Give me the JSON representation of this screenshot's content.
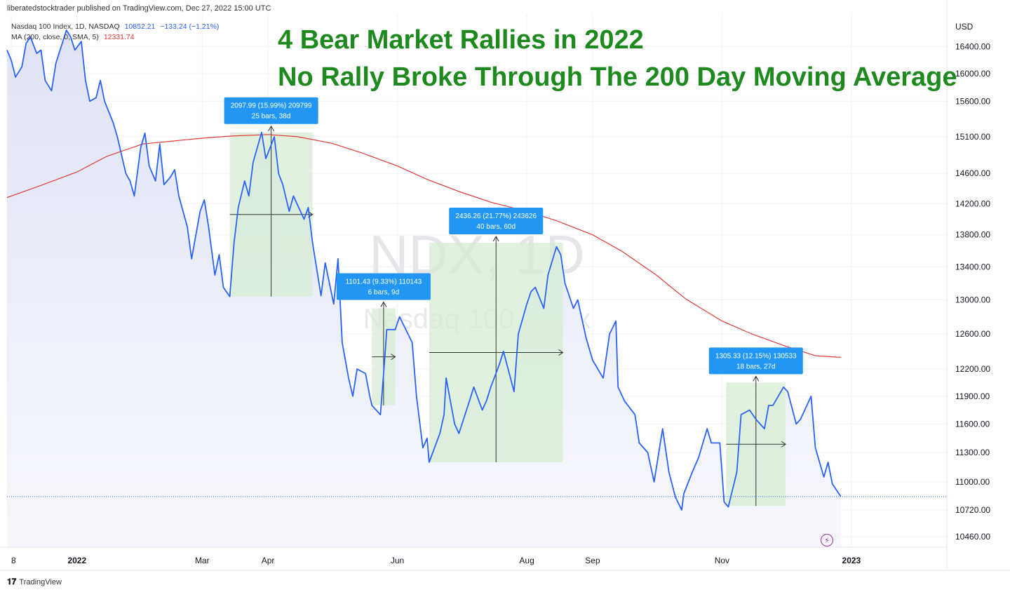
{
  "publisher_line": "liberatedstocktrader published on TradingView.com, Dec 27, 2022 15:00 UTC",
  "legend": {
    "symbol_line": "Nasdaq 100 Index, 1D, NASDAQ",
    "last": "10852.21",
    "change": "−133.24 (−1.21%)",
    "ma_line": "MA (200, close, 0, SMA, 5)",
    "ma_value": "12331.74"
  },
  "headline": {
    "line1": "4 Bear Market Rallies in 2022",
    "line2": "No Rally Broke Through The 200 Day Moving Average"
  },
  "watermark": {
    "ticker": "NDX, 1D",
    "name": "Nasdaq 100 Index"
  },
  "currency": "USD",
  "footer_brand": "TradingView",
  "colors": {
    "price": "#2962ff",
    "ma": "#e53935",
    "headline": "#1e8a1e",
    "measure_box": "#d6ecd2",
    "measure_label": "#2196f3"
  },
  "chart_data": {
    "type": "line",
    "title": "4 Bear Market Rallies in 2022 / No Rally Broke Through The 200 Day Moving Average",
    "xlabel": "",
    "ylabel": "",
    "y_scale": "log",
    "ylim": [
      10360,
      16900
    ],
    "y_ticks": [
      16400,
      16000,
      15600,
      15100,
      14600,
      14200,
      13800,
      13400,
      13000,
      12600,
      12200,
      11900,
      11600,
      11300,
      11000,
      10720,
      10460
    ],
    "y_tick_labels": [
      "16400.00",
      "16000.00",
      "15600.00",
      "15100.00",
      "14600.00",
      "14200.00",
      "13800.00",
      "13400.00",
      "13000.00",
      "12600.00",
      "12200.00",
      "11900.00",
      "11600.00",
      "11300.00",
      "11000.00",
      "10720.00",
      "10460.00"
    ],
    "x_range": [
      "2021-11-29",
      "2023-02-15"
    ],
    "x_ticks": [
      {
        "date": "2021-12-01",
        "label": "8"
      },
      {
        "date": "2022-01-01",
        "label": "2022"
      },
      {
        "date": "2022-03-01",
        "label": "Mar"
      },
      {
        "date": "2022-04-01",
        "label": "Apr"
      },
      {
        "date": "2022-06-01",
        "label": "Jun"
      },
      {
        "date": "2022-08-01",
        "label": "Aug"
      },
      {
        "date": "2022-09-01",
        "label": "Sep"
      },
      {
        "date": "2022-11-01",
        "label": "Nov"
      },
      {
        "date": "2023-01-01",
        "label": "2023"
      }
    ],
    "last_price": 10852.21,
    "series": [
      {
        "name": "Nasdaq 100 Index",
        "points": [
          [
            "2021-11-29",
            16350
          ],
          [
            "2021-12-01",
            16200
          ],
          [
            "2021-12-03",
            15950
          ],
          [
            "2021-12-06",
            16100
          ],
          [
            "2021-12-08",
            16450
          ],
          [
            "2021-12-10",
            16550
          ],
          [
            "2021-12-13",
            16300
          ],
          [
            "2021-12-15",
            16350
          ],
          [
            "2021-12-17",
            15900
          ],
          [
            "2021-12-20",
            15750
          ],
          [
            "2021-12-22",
            16150
          ],
          [
            "2021-12-24",
            16350
          ],
          [
            "2021-12-27",
            16650
          ],
          [
            "2021-12-29",
            16550
          ],
          [
            "2021-12-31",
            16350
          ],
          [
            "2022-01-03",
            16480
          ],
          [
            "2022-01-05",
            15900
          ],
          [
            "2022-01-07",
            15600
          ],
          [
            "2022-01-10",
            15650
          ],
          [
            "2022-01-12",
            15900
          ],
          [
            "2022-01-14",
            15600
          ],
          [
            "2022-01-18",
            15300
          ],
          [
            "2022-01-20",
            15100
          ],
          [
            "2022-01-24",
            14600
          ],
          [
            "2022-01-26",
            14500
          ],
          [
            "2022-01-28",
            14300
          ],
          [
            "2022-01-31",
            14950
          ],
          [
            "2022-02-02",
            15150
          ],
          [
            "2022-02-04",
            14700
          ],
          [
            "2022-02-07",
            14500
          ],
          [
            "2022-02-09",
            15000
          ],
          [
            "2022-02-11",
            14450
          ],
          [
            "2022-02-14",
            14550
          ],
          [
            "2022-02-16",
            14650
          ],
          [
            "2022-02-18",
            14300
          ],
          [
            "2022-02-22",
            13900
          ],
          [
            "2022-02-24",
            13500
          ],
          [
            "2022-02-28",
            14100
          ],
          [
            "2022-03-02",
            14250
          ],
          [
            "2022-03-04",
            13900
          ],
          [
            "2022-03-07",
            13300
          ],
          [
            "2022-03-09",
            13550
          ],
          [
            "2022-03-11",
            13150
          ],
          [
            "2022-03-14",
            13040
          ],
          [
            "2022-03-16",
            13700
          ],
          [
            "2022-03-18",
            14150
          ],
          [
            "2022-03-21",
            14500
          ],
          [
            "2022-03-23",
            14300
          ],
          [
            "2022-03-25",
            14750
          ],
          [
            "2022-03-29",
            15160
          ],
          [
            "2022-03-31",
            14800
          ],
          [
            "2022-04-04",
            15100
          ],
          [
            "2022-04-06",
            14600
          ],
          [
            "2022-04-08",
            14450
          ],
          [
            "2022-04-11",
            14100
          ],
          [
            "2022-04-13",
            14300
          ],
          [
            "2022-04-18",
            14000
          ],
          [
            "2022-04-20",
            14150
          ],
          [
            "2022-04-22",
            13700
          ],
          [
            "2022-04-26",
            13050
          ],
          [
            "2022-04-28",
            13450
          ],
          [
            "2022-05-02",
            12950
          ],
          [
            "2022-05-04",
            13500
          ],
          [
            "2022-05-06",
            12500
          ],
          [
            "2022-05-09",
            12100
          ],
          [
            "2022-05-11",
            11900
          ],
          [
            "2022-05-13",
            12200
          ],
          [
            "2022-05-17",
            12150
          ],
          [
            "2022-05-19",
            11900
          ],
          [
            "2022-05-20",
            11800
          ],
          [
            "2022-05-24",
            11700
          ],
          [
            "2022-05-26",
            12300
          ],
          [
            "2022-05-27",
            12650
          ],
          [
            "2022-05-31",
            12650
          ],
          [
            "2022-06-02",
            12800
          ],
          [
            "2022-06-06",
            12600
          ],
          [
            "2022-06-08",
            12500
          ],
          [
            "2022-06-10",
            11900
          ],
          [
            "2022-06-13",
            11350
          ],
          [
            "2022-06-15",
            11450
          ],
          [
            "2022-06-16",
            11200
          ],
          [
            "2022-06-21",
            11500
          ],
          [
            "2022-06-23",
            11700
          ],
          [
            "2022-06-24",
            12100
          ],
          [
            "2022-06-28",
            11600
          ],
          [
            "2022-06-30",
            11500
          ],
          [
            "2022-07-05",
            11850
          ],
          [
            "2022-07-07",
            12000
          ],
          [
            "2022-07-11",
            11750
          ],
          [
            "2022-07-13",
            11850
          ],
          [
            "2022-07-15",
            12000
          ],
          [
            "2022-07-19",
            12250
          ],
          [
            "2022-07-21",
            12400
          ],
          [
            "2022-07-26",
            11950
          ],
          [
            "2022-07-28",
            12600
          ],
          [
            "2022-08-01",
            12950
          ],
          [
            "2022-08-03",
            13100
          ],
          [
            "2022-08-05",
            13150
          ],
          [
            "2022-08-09",
            12900
          ],
          [
            "2022-08-11",
            13300
          ],
          [
            "2022-08-15",
            13650
          ],
          [
            "2022-08-17",
            13550
          ],
          [
            "2022-08-19",
            13200
          ],
          [
            "2022-08-23",
            12900
          ],
          [
            "2022-08-25",
            13000
          ],
          [
            "2022-08-29",
            12550
          ],
          [
            "2022-09-01",
            12300
          ],
          [
            "2022-09-06",
            12100
          ],
          [
            "2022-09-09",
            12600
          ],
          [
            "2022-09-12",
            12750
          ],
          [
            "2022-09-13",
            12000
          ],
          [
            "2022-09-16",
            11850
          ],
          [
            "2022-09-21",
            11700
          ],
          [
            "2022-09-23",
            11400
          ],
          [
            "2022-09-27",
            11300
          ],
          [
            "2022-09-30",
            11000
          ],
          [
            "2022-10-04",
            11550
          ],
          [
            "2022-10-07",
            11100
          ],
          [
            "2022-10-10",
            10850
          ],
          [
            "2022-10-13",
            10720
          ],
          [
            "2022-10-14",
            10880
          ],
          [
            "2022-10-18",
            11100
          ],
          [
            "2022-10-21",
            11250
          ],
          [
            "2022-10-25",
            11550
          ],
          [
            "2022-10-27",
            11400
          ],
          [
            "2022-10-31",
            11400
          ],
          [
            "2022-11-02",
            10800
          ],
          [
            "2022-11-04",
            10750
          ],
          [
            "2022-11-08",
            11100
          ],
          [
            "2022-11-10",
            11700
          ],
          [
            "2022-11-14",
            11750
          ],
          [
            "2022-11-17",
            11650
          ],
          [
            "2022-11-21",
            11550
          ],
          [
            "2022-11-23",
            11800
          ],
          [
            "2022-11-25",
            11800
          ],
          [
            "2022-11-30",
            12000
          ],
          [
            "2022-12-02",
            11950
          ],
          [
            "2022-12-06",
            11600
          ],
          [
            "2022-12-08",
            11650
          ],
          [
            "2022-12-13",
            11900
          ],
          [
            "2022-12-15",
            11350
          ],
          [
            "2022-12-19",
            11050
          ],
          [
            "2022-12-21",
            11200
          ],
          [
            "2022-12-23",
            10980
          ],
          [
            "2022-12-27",
            10852
          ]
        ]
      },
      {
        "name": "MA (200, close, 0, SMA, 5)",
        "points": [
          [
            "2021-11-29",
            14280
          ],
          [
            "2021-12-15",
            14440
          ],
          [
            "2022-01-01",
            14620
          ],
          [
            "2022-01-15",
            14830
          ],
          [
            "2022-02-01",
            15000
          ],
          [
            "2022-02-15",
            15040
          ],
          [
            "2022-03-01",
            15080
          ],
          [
            "2022-03-15",
            15110
          ],
          [
            "2022-04-01",
            15130
          ],
          [
            "2022-04-15",
            15100
          ],
          [
            "2022-05-01",
            15010
          ],
          [
            "2022-05-15",
            14880
          ],
          [
            "2022-06-01",
            14700
          ],
          [
            "2022-06-15",
            14520
          ],
          [
            "2022-07-01",
            14350
          ],
          [
            "2022-07-15",
            14220
          ],
          [
            "2022-08-01",
            14100
          ],
          [
            "2022-08-15",
            13980
          ],
          [
            "2022-09-01",
            13800
          ],
          [
            "2022-09-15",
            13590
          ],
          [
            "2022-10-01",
            13300
          ],
          [
            "2022-10-15",
            13010
          ],
          [
            "2022-11-01",
            12750
          ],
          [
            "2022-11-15",
            12600
          ],
          [
            "2022-12-01",
            12460
          ],
          [
            "2022-12-15",
            12350
          ],
          [
            "2022-12-27",
            12331.74
          ]
        ]
      }
    ],
    "annotations": [
      {
        "x1": "2022-03-14",
        "x2": "2022-04-22",
        "y1": 13040,
        "y2": 15160,
        "line1": "2097.99 (15.99%) 209799",
        "line2": "25 bars, 38d"
      },
      {
        "x1": "2022-05-20",
        "x2": "2022-05-31",
        "y1": 11800,
        "y2": 12900,
        "line1": "1101.43 (9.33%) 110143",
        "line2": "6 bars, 9d"
      },
      {
        "x1": "2022-06-16",
        "x2": "2022-08-18",
        "y1": 11200,
        "y2": 13700,
        "line1": "2436.26 (21.77%) 243626",
        "line2": "40 bars, 60d"
      },
      {
        "x1": "2022-11-03",
        "x2": "2022-12-01",
        "y1": 10760,
        "y2": 12050,
        "line1": "1305.33 (12.15%) 130533",
        "line2": "18 bars, 27d"
      }
    ]
  }
}
